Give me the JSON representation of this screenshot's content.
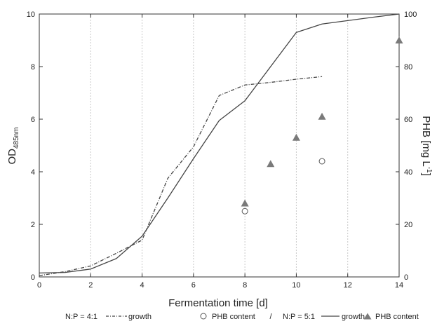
{
  "chart_data": {
    "type": "line",
    "x_axis": {
      "label": "Fermentation time [d]",
      "range": [
        0,
        14
      ],
      "ticks": [
        0,
        2,
        4,
        6,
        8,
        10,
        12,
        14
      ],
      "grid": true
    },
    "y_axis_left": {
      "label_main": "OD",
      "label_sub": "485nm",
      "range": [
        0,
        10
      ],
      "ticks": [
        0,
        2,
        4,
        6,
        8,
        10
      ],
      "grid": false
    },
    "y_axis_right": {
      "label_main": "PHB [mg L",
      "label_sup": "-1",
      "label_end": "]",
      "range": [
        0,
        100
      ],
      "ticks": [
        0,
        20,
        40,
        60,
        80,
        100
      ]
    },
    "series": [
      {
        "name": "growth",
        "group": "N:P = 4:1",
        "axis": "left",
        "style": "dash-dot",
        "color": "#444444",
        "x": [
          0,
          1,
          2,
          3,
          4,
          5,
          6,
          7,
          8,
          9,
          10,
          11
        ],
        "y": [
          0.05,
          0.2,
          0.42,
          0.9,
          1.4,
          3.75,
          4.95,
          6.9,
          7.3,
          7.4,
          7.52,
          7.62
        ]
      },
      {
        "name": "PHB content",
        "group": "N:P = 4:1",
        "axis": "right",
        "marker": "circle",
        "color": "#555555",
        "x": [
          8,
          11
        ],
        "y": [
          25,
          44
        ]
      },
      {
        "name": "growth",
        "group": "N:P = 5:1",
        "axis": "left",
        "style": "solid",
        "color": "#444444",
        "x": [
          0,
          1,
          2,
          3,
          4,
          5,
          6,
          7,
          8,
          9,
          10,
          11,
          12,
          13,
          14
        ],
        "y": [
          0.15,
          0.17,
          0.3,
          0.7,
          1.55,
          3.0,
          4.5,
          5.95,
          6.7,
          8.0,
          9.3,
          9.62,
          9.75,
          9.88,
          10.0
        ]
      },
      {
        "name": "PHB content",
        "group": "N:P = 5:1",
        "axis": "right",
        "marker": "triangle",
        "color": "#7a7a7a",
        "x": [
          8,
          9,
          10,
          11,
          14
        ],
        "y": [
          28,
          43,
          53,
          61,
          90
        ]
      }
    ],
    "legend": {
      "position": "bottom",
      "group1_label": "N:P = 4:1",
      "line_label": "growth",
      "marker_label": "PHB content",
      "separator": "/",
      "group2_label": "N:P = 5:1"
    }
  }
}
